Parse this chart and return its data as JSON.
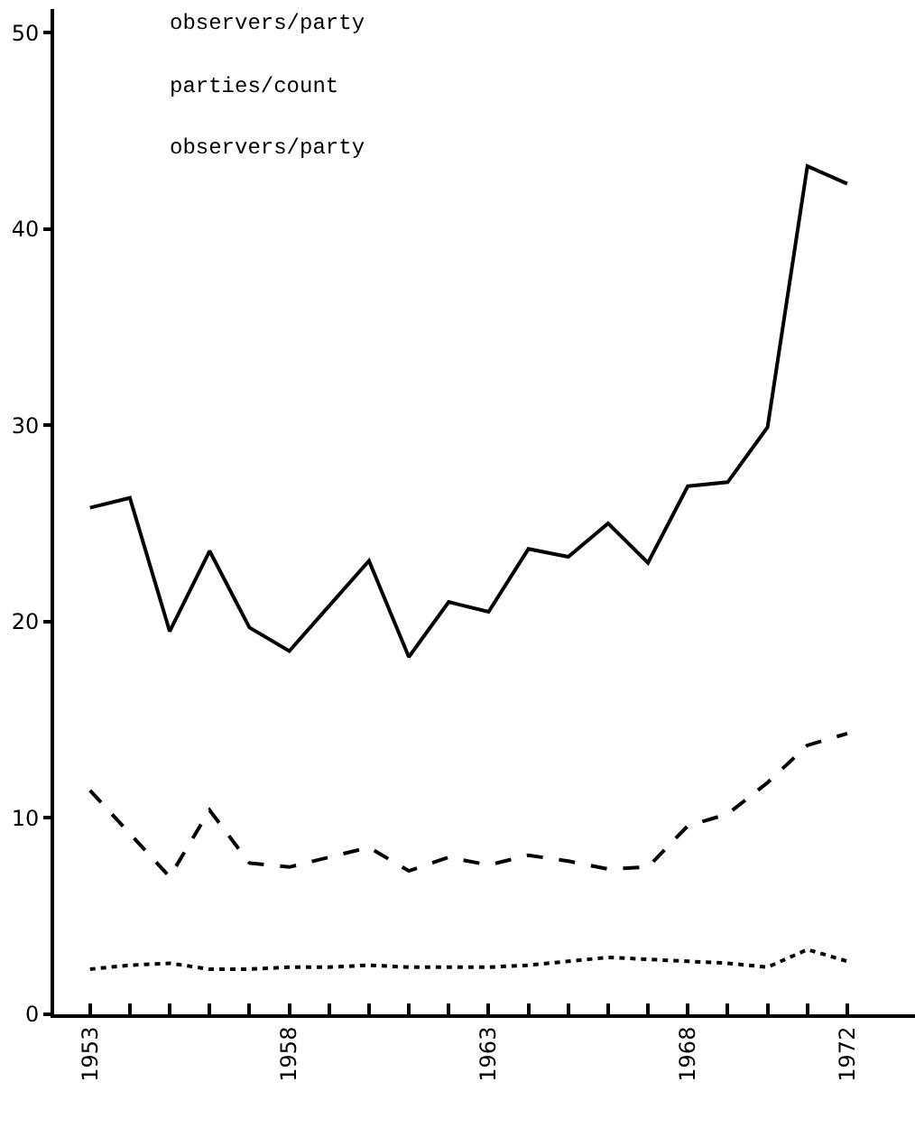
{
  "chart_data": {
    "type": "line",
    "x": [
      1953,
      1954,
      1955,
      1956,
      1957,
      1958,
      1959,
      1960,
      1961,
      1962,
      1963,
      1964,
      1965,
      1966,
      1967,
      1968,
      1969,
      1970,
      1971,
      1972
    ],
    "series": [
      {
        "color": "#000000",
        "line_style": "solid",
        "values": [
          25.8,
          26.3,
          19.5,
          23.6,
          19.7,
          18.5,
          20.8,
          23.1,
          18.2,
          21.0,
          20.5,
          23.7,
          23.3,
          25.0,
          23.0,
          26.9,
          27.1,
          29.9,
          43.2,
          42.3
        ]
      },
      {
        "color": "#000000",
        "line_style": "dashed",
        "values": [
          11.4,
          9.2,
          7.0,
          10.4,
          7.7,
          7.5,
          8.0,
          8.5,
          7.3,
          8.0,
          7.6,
          8.1,
          7.8,
          7.4,
          7.5,
          9.6,
          10.2,
          11.8,
          13.7,
          14.3
        ]
      },
      {
        "color": "#000000",
        "line_style": "dotted",
        "values": [
          2.3,
          2.5,
          2.6,
          2.3,
          2.3,
          2.4,
          2.4,
          2.5,
          2.4,
          2.4,
          2.4,
          2.5,
          2.7,
          2.9,
          2.8,
          2.7,
          2.6,
          2.4,
          3.3,
          2.7
        ]
      }
    ],
    "annotations": [
      "observers/party",
      "parties/count",
      "observers/party"
    ],
    "xlim": [
      1952.1,
      1973.7
    ],
    "xticks": [
      1953,
      {
        "value": 1954,
        "label": null
      },
      {
        "value": 1955,
        "label": null
      },
      {
        "value": 1956,
        "label": null
      },
      {
        "value": 1957,
        "label": null
      },
      1958,
      {
        "value": 1959,
        "label": null
      },
      {
        "value": 1960,
        "label": null
      },
      {
        "value": 1961,
        "label": null
      },
      {
        "value": 1962,
        "label": null
      },
      1963,
      {
        "value": 1964,
        "label": null
      },
      {
        "value": 1965,
        "label": null
      },
      {
        "value": 1966,
        "label": null
      },
      {
        "value": 1967,
        "label": null
      },
      1968,
      {
        "value": 1969,
        "label": null
      },
      {
        "value": 1970,
        "label": null
      },
      {
        "value": 1971,
        "label": null
      },
      1972
    ],
    "ylim": [
      0,
      51.2
    ],
    "yticks": [
      0,
      10,
      20,
      30,
      40,
      50
    ]
  }
}
